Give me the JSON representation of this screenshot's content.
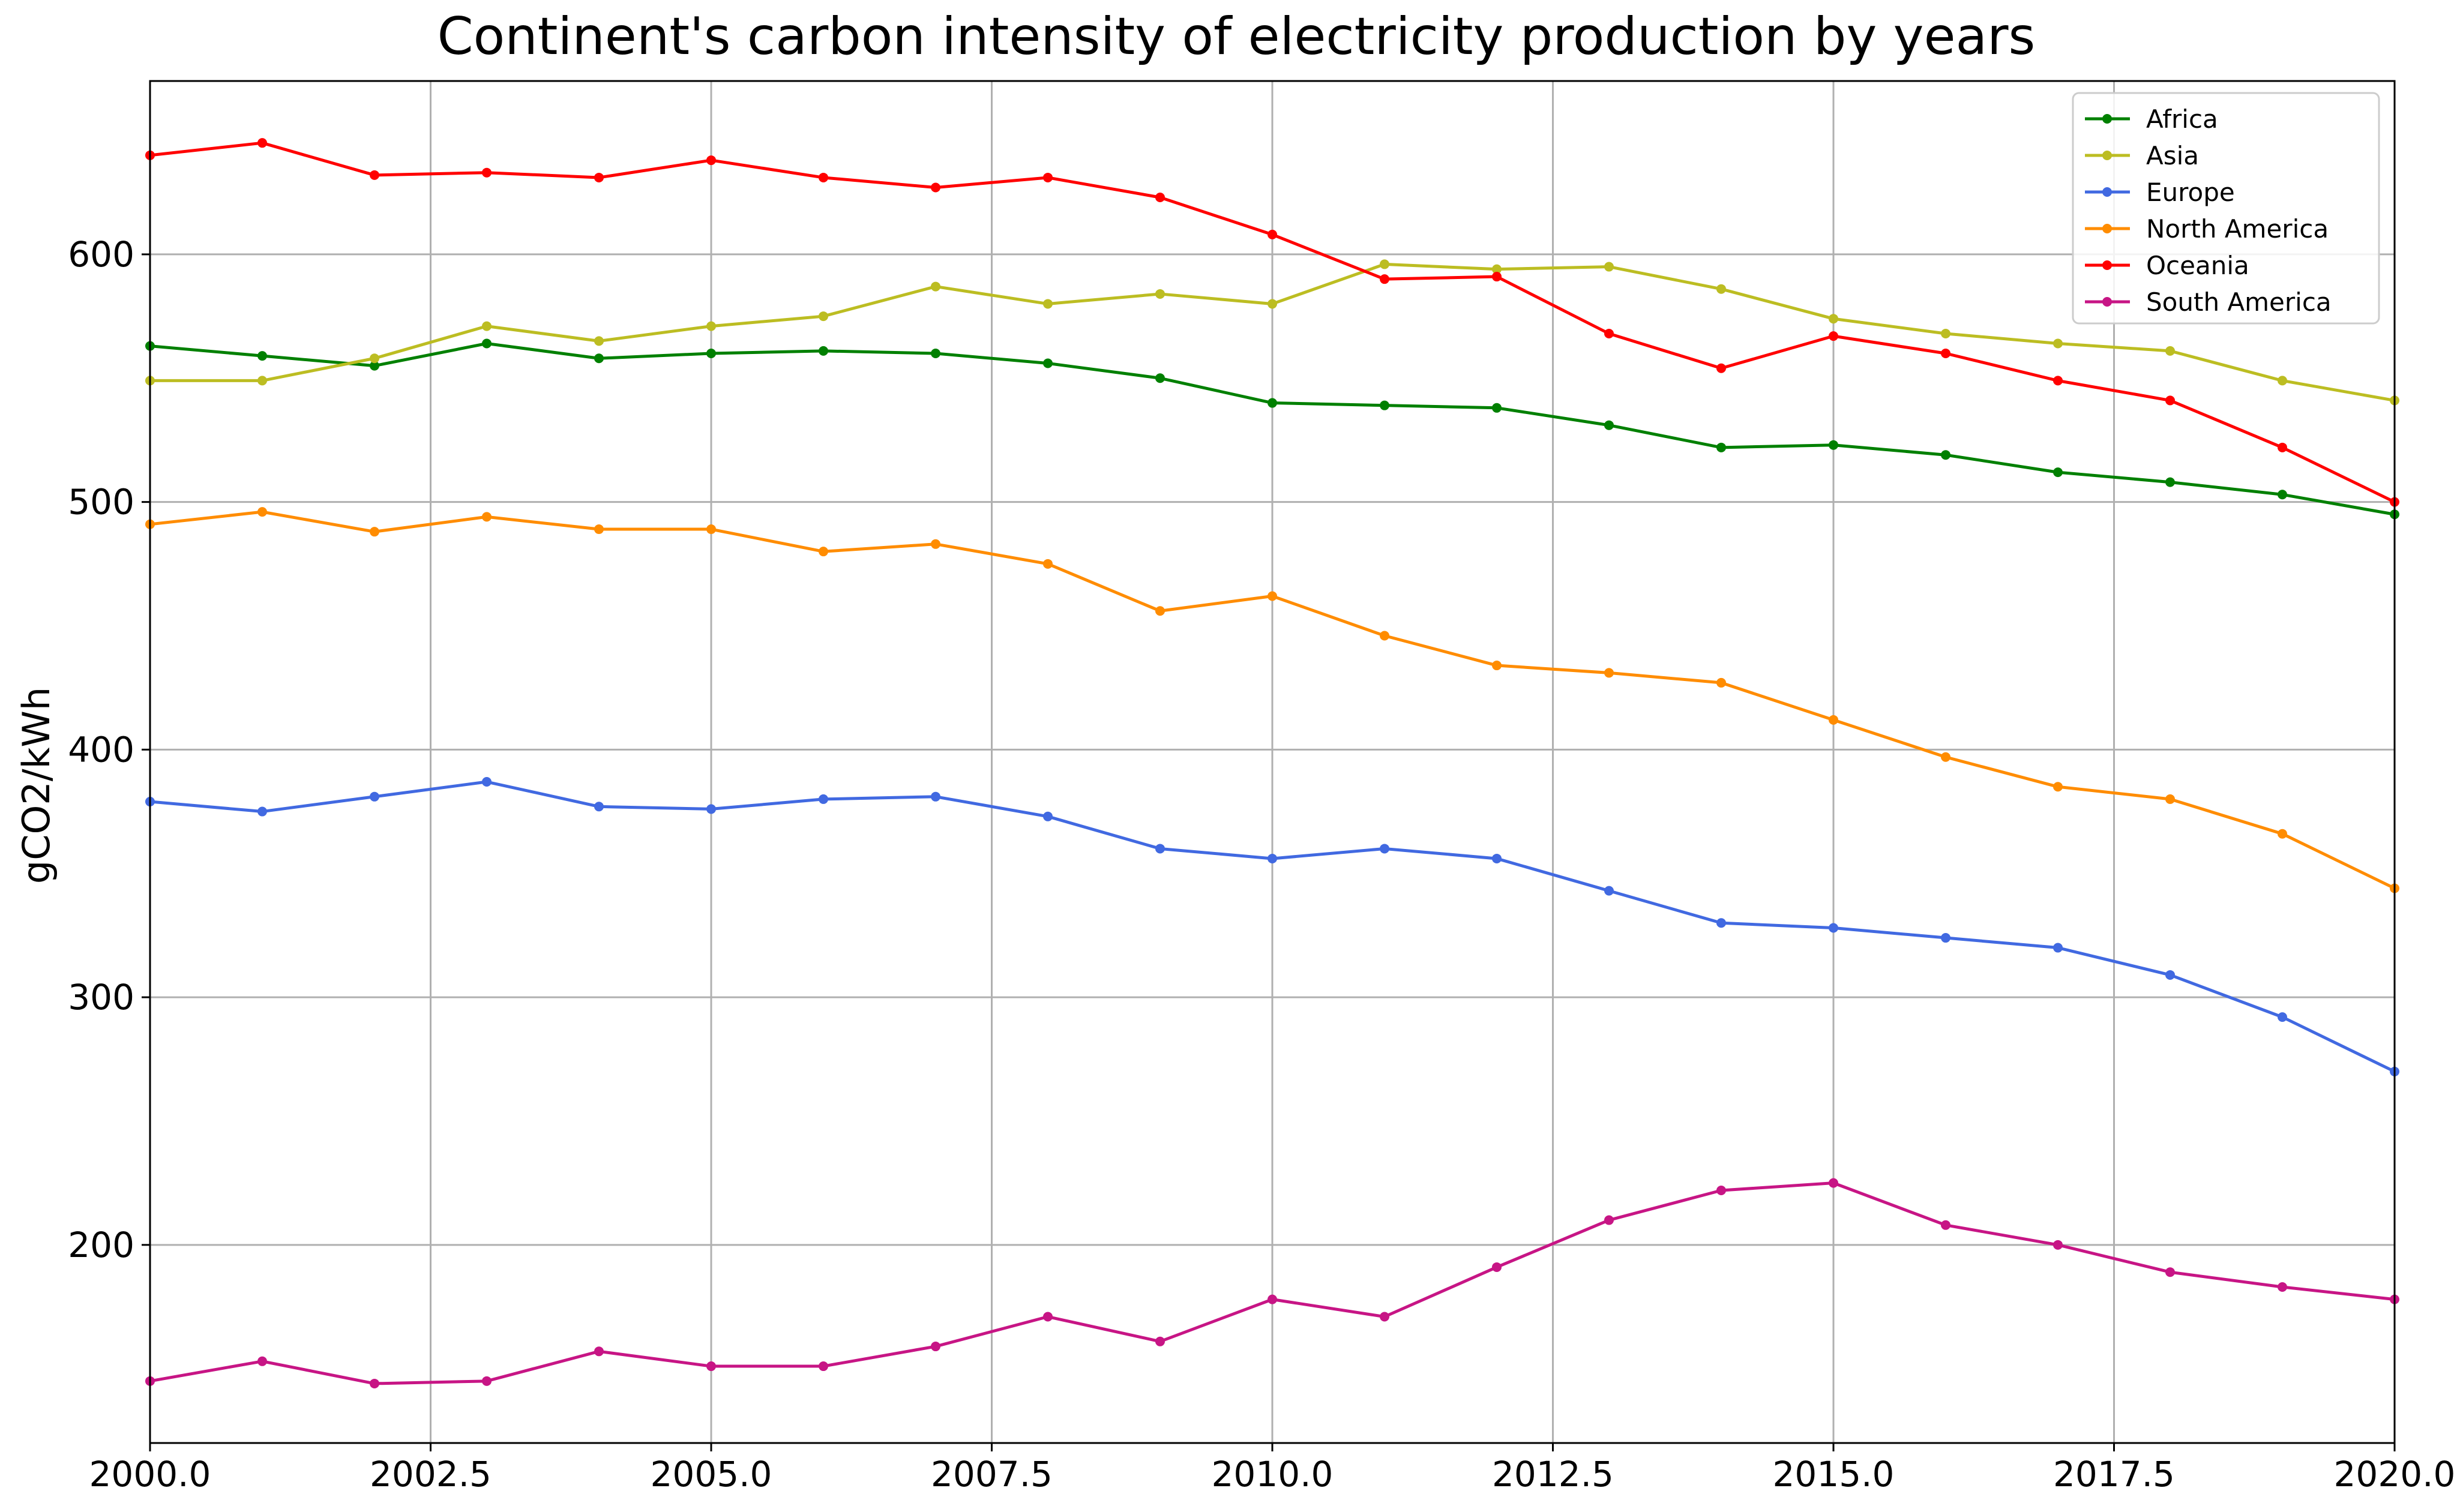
{
  "chart_data": {
    "type": "line",
    "title": "Continent's carbon intensity of electricity production by years",
    "xlabel": "",
    "ylabel": "gCO2/kWh",
    "xlim": [
      2000,
      2020
    ],
    "ylim": [
      120,
      670
    ],
    "x_ticks": [
      2000.0,
      2002.5,
      2005.0,
      2007.5,
      2010.0,
      2012.5,
      2015.0,
      2017.5,
      2020.0
    ],
    "x_tick_labels": [
      "2000.0",
      "2002.5",
      "2005.0",
      "2007.5",
      "2010.0",
      "2012.5",
      "2015.0",
      "2017.5",
      "2020.0"
    ],
    "y_ticks": [
      200,
      300,
      400,
      500,
      600
    ],
    "y_tick_labels": [
      "200",
      "300",
      "400",
      "500",
      "600"
    ],
    "grid": true,
    "legend_position": "top-right",
    "x": [
      2000,
      2001,
      2002,
      2003,
      2004,
      2005,
      2006,
      2007,
      2008,
      2009,
      2010,
      2011,
      2012,
      2013,
      2014,
      2015,
      2016,
      2017,
      2018,
      2019,
      2020
    ],
    "series": [
      {
        "name": "Africa",
        "color": "#008000",
        "values": [
          563,
          559,
          555,
          564,
          558,
          560,
          561,
          560,
          556,
          550,
          540,
          539,
          538,
          531,
          522,
          523,
          519,
          512,
          508,
          503,
          495
        ]
      },
      {
        "name": "Asia",
        "color": "#bcbd22",
        "values": [
          549,
          549,
          558,
          571,
          565,
          571,
          575,
          587,
          580,
          584,
          580,
          596,
          594,
          595,
          586,
          574,
          568,
          564,
          561,
          549,
          541
        ]
      },
      {
        "name": "Europe",
        "color": "#4169e1",
        "values": [
          379,
          375,
          381,
          387,
          377,
          376,
          380,
          381,
          373,
          360,
          356,
          360,
          356,
          343,
          330,
          328,
          324,
          320,
          309,
          292,
          270
        ]
      },
      {
        "name": "North America",
        "color": "#ff8c00",
        "values": [
          491,
          496,
          488,
          494,
          489,
          489,
          480,
          483,
          475,
          456,
          462,
          446,
          434,
          431,
          427,
          412,
          397,
          385,
          380,
          366,
          344
        ]
      },
      {
        "name": "Oceania",
        "color": "#ff0000",
        "values": [
          640,
          645,
          632,
          633,
          631,
          638,
          631,
          627,
          631,
          623,
          608,
          590,
          591,
          568,
          554,
          567,
          560,
          549,
          541,
          522,
          500
        ]
      },
      {
        "name": "South America",
        "color": "#c71585",
        "values": [
          145,
          153,
          144,
          145,
          157,
          151,
          151,
          159,
          171,
          161,
          178,
          171,
          191,
          210,
          222,
          225,
          208,
          200,
          189,
          183,
          178
        ]
      }
    ]
  }
}
